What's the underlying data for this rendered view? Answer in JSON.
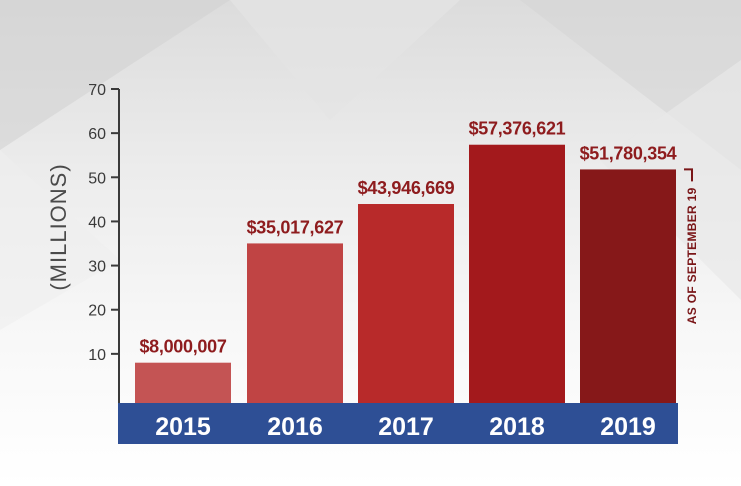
{
  "chart_data": {
    "type": "bar",
    "ylabel": "(MILLIONS)",
    "ylim": [
      0,
      70
    ],
    "yticks": [
      10,
      20,
      30,
      40,
      50,
      60,
      70
    ],
    "categories": [
      "2015",
      "2016",
      "2017",
      "2018",
      "2019"
    ],
    "values": [
      8.000007,
      35.017627,
      43.946669,
      57.376621,
      51.780354
    ],
    "data_labels": [
      "$8,000,007",
      "$35,017,627",
      "$43,946,669",
      "$57,376,621",
      "$51,780,354"
    ],
    "annotation": "AS OF SEPTEMBER 19",
    "bar_colors": [
      "#c45454",
      "#c04444",
      "#b82a2a",
      "#a3191c",
      "#861819"
    ],
    "axis_band_color": "#2e4f95",
    "grid": false
  }
}
